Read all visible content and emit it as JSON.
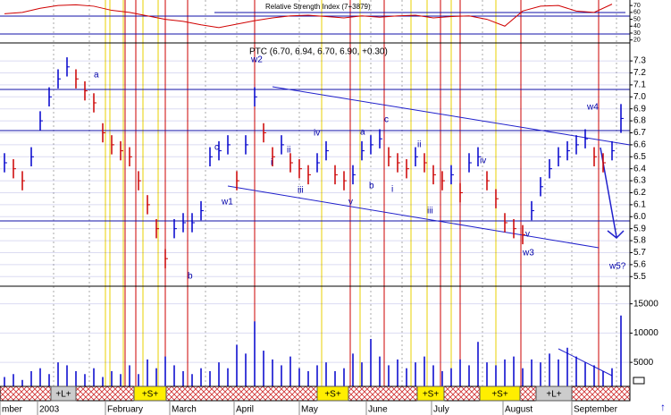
{
  "chart_data": [
    {
      "type": "line",
      "title": "Relative Strength Index (7+3879)",
      "color": "#d00000",
      "x": [
        0,
        2,
        4,
        6,
        8,
        10,
        12,
        14,
        16,
        18,
        20,
        22,
        24,
        26,
        28,
        30,
        32,
        34,
        36,
        38,
        40,
        42,
        44,
        46,
        48,
        50,
        52,
        54,
        56,
        58,
        60,
        62,
        64,
        66,
        68
      ],
      "values": [
        58,
        60,
        66,
        70,
        71,
        69,
        63,
        60,
        55,
        50,
        47,
        42,
        38,
        43,
        48,
        52,
        55,
        56,
        54,
        52,
        55,
        53,
        55,
        56,
        52,
        54,
        55,
        50,
        40,
        62,
        69,
        70,
        62,
        60,
        72
      ],
      "ylim": [
        17,
        78
      ],
      "yticks": [
        20,
        30,
        40,
        50,
        60,
        70
      ]
    },
    {
      "type": "ohlc",
      "title": "PTC (6.70, 6.94, 6.70, 6.90, +0.30)",
      "up_color": "#0000cc",
      "down_color": "#cc0000",
      "high": [
        6.53,
        6.48,
        6.38,
        6.58,
        6.88,
        7.08,
        7.23,
        7.33,
        7.23,
        7.13,
        7.03,
        6.78,
        6.68,
        6.63,
        6.58,
        6.38,
        6.18,
        5.98,
        5.73,
        5.98,
        6.03,
        6.03,
        6.13,
        6.58,
        6.63,
        6.68,
        6.38,
        6.68,
        7.08,
        6.78,
        6.58,
        6.68,
        6.53,
        6.48,
        6.43,
        6.53,
        6.63,
        6.43,
        6.38,
        6.43,
        6.63,
        6.68,
        6.73,
        6.58,
        6.53,
        6.48,
        6.58,
        6.53,
        6.43,
        6.38,
        6.43,
        6.28,
        6.53,
        6.58,
        6.38,
        6.23,
        6.03,
        5.98,
        5.93,
        6.13,
        6.33,
        6.48,
        6.58,
        6.63,
        6.68,
        6.73,
        6.58,
        6.53,
        6.63,
        6.94
      ],
      "low": [
        6.37,
        6.32,
        6.22,
        6.42,
        6.72,
        6.92,
        7.07,
        7.17,
        7.07,
        6.97,
        6.87,
        6.62,
        6.52,
        6.47,
        6.42,
        6.22,
        6.02,
        5.82,
        5.57,
        5.82,
        5.87,
        5.87,
        5.97,
        6.42,
        6.47,
        6.52,
        6.22,
        6.52,
        6.92,
        6.62,
        6.42,
        6.52,
        6.37,
        6.32,
        6.27,
        6.37,
        6.47,
        6.27,
        6.22,
        6.27,
        6.47,
        6.52,
        6.57,
        6.42,
        6.37,
        6.32,
        6.42,
        6.37,
        6.27,
        6.22,
        6.27,
        6.12,
        6.37,
        6.42,
        6.22,
        6.07,
        5.87,
        5.82,
        5.77,
        5.97,
        6.17,
        6.32,
        6.42,
        6.47,
        6.52,
        6.57,
        6.42,
        6.37,
        6.47,
        6.7
      ],
      "ylim": [
        5.42,
        7.45
      ],
      "yticks": [
        5.5,
        5.6,
        5.7,
        5.8,
        5.9,
        {
          "value": 6,
          "label": "6.0"
        },
        6.1,
        6.2,
        6.3,
        6.4,
        6.5,
        6.6,
        6.7,
        6.8,
        6.9,
        {
          "value": 7,
          "label": "7.0"
        },
        7.1,
        7.2,
        7.3
      ],
      "annotations": [
        "a",
        "b",
        "c",
        "w2",
        "w1",
        "i",
        "ii",
        "iii",
        "iv",
        "v",
        "a",
        "b",
        "c",
        "i",
        "ii",
        "iii",
        "iv",
        "v",
        "w3",
        "w4",
        "w5?"
      ]
    },
    {
      "type": "bar",
      "color": "#0000cc",
      "values": [
        2500,
        3000,
        2000,
        3500,
        4000,
        3000,
        5000,
        4500,
        3500,
        3000,
        4000,
        2500,
        3500,
        3000,
        4500,
        3000,
        5500,
        4000,
        6000,
        4500,
        3500,
        3000,
        4000,
        3500,
        5000,
        4000,
        8000,
        6500,
        12000,
        7000,
        5500,
        4500,
        6000,
        4000,
        3500,
        4500,
        5000,
        3500,
        4000,
        6500,
        5000,
        9000,
        6000,
        4500,
        5500,
        4000,
        5000,
        6000,
        4500,
        3500,
        4000,
        5500,
        4500,
        8500,
        5000,
        4500,
        5500,
        6000,
        4000,
        5500,
        5000,
        6500,
        5500,
        7500,
        6000,
        5000,
        4500,
        3500,
        4000,
        13000
      ],
      "ylim": [
        900,
        17700
      ],
      "yticks": [
        5000,
        10000,
        15000
      ]
    },
    {
      "type": "axis",
      "xlim": [
        -0.5,
        70
      ],
      "xticks": [
        {
          "value": -0.5,
          "label": "mber"
        },
        {
          "value": 3.7,
          "label": "2003"
        },
        {
          "value": 11.3,
          "label": "February"
        },
        {
          "value": 18.5,
          "label": "March"
        },
        {
          "value": 25.7,
          "label": "April"
        },
        {
          "value": 33,
          "label": "May"
        },
        {
          "value": 40.5,
          "label": "June"
        },
        {
          "value": 47.8,
          "label": "July"
        },
        {
          "value": 55.8,
          "label": "August"
        },
        {
          "value": 63.5,
          "label": "September"
        }
      ],
      "band_labels": [
        "+L+",
        "+S+",
        "+S+",
        "+S+",
        "+S+",
        "+L+"
      ]
    }
  ]
}
